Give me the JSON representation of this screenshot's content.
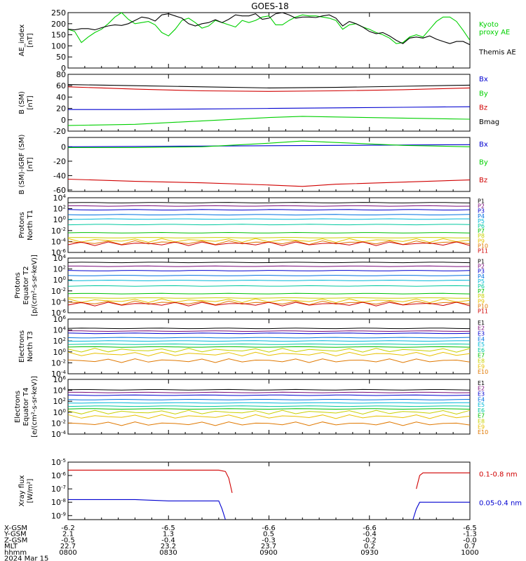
{
  "title": "GOES-18",
  "colors": {
    "black": "#000000",
    "green": "#00d000",
    "blue": "#0000d0",
    "red": "#d00000",
    "P": [
      "#000000",
      "#7a0a7a",
      "#0000d0",
      "#0070e0",
      "#00b8d8",
      "#00c8a0",
      "#00c000",
      "#c8d000",
      "#e8c000",
      "#e07800",
      "#d00000"
    ],
    "E": [
      "#000000",
      "#7a0a7a",
      "#0000d0",
      "#0070e0",
      "#00b8d8",
      "#00c8a0",
      "#00c000",
      "#c8d000",
      "#e8c000",
      "#e07800",
      "#d00000"
    ]
  },
  "chart_data": [
    {
      "id": "ae",
      "type": "line",
      "ylabel": "AE_index\n[nT]",
      "yticks": [
        "250",
        "200",
        "150",
        "100",
        "50",
        "0"
      ],
      "ylim": [
        0,
        250
      ],
      "legend": [
        {
          "text": "Kyoto\nproxy AE",
          "color": "#00d000"
        },
        {
          "text": "Themis AE",
          "color": "#000000"
        }
      ],
      "series": [
        {
          "name": "Kyoto proxy AE",
          "color": "#00d000",
          "x": [
            0,
            2,
            4,
            6,
            8,
            10,
            12,
            14,
            16,
            18,
            20,
            22,
            24,
            26,
            28,
            30,
            32,
            34,
            36,
            38,
            40,
            42,
            44,
            46,
            48,
            50,
            52,
            54,
            56,
            58,
            60,
            62,
            64,
            66,
            68,
            70,
            72,
            74,
            76,
            78,
            80,
            82,
            84,
            86,
            88,
            90,
            92,
            94,
            96,
            98,
            100,
            102,
            104,
            106,
            108,
            110,
            112,
            114,
            116,
            118,
            120
          ],
          "y": [
            175,
            165,
            115,
            140,
            160,
            175,
            200,
            230,
            250,
            220,
            200,
            205,
            210,
            195,
            160,
            145,
            175,
            215,
            225,
            205,
            180,
            190,
            215,
            205,
            195,
            185,
            215,
            205,
            215,
            230,
            235,
            195,
            195,
            215,
            230,
            240,
            235,
            235,
            230,
            225,
            215,
            175,
            195,
            200,
            185,
            175,
            160,
            150,
            135,
            110,
            115,
            140,
            150,
            140,
            175,
            210,
            230,
            230,
            210,
            170,
            125
          ]
        },
        {
          "name": "Themis AE",
          "color": "#000000",
          "x": [
            0,
            2,
            4,
            6,
            8,
            10,
            12,
            14,
            16,
            18,
            20,
            22,
            24,
            26,
            28,
            30,
            32,
            34,
            36,
            38,
            40,
            42,
            44,
            46,
            48,
            50,
            52,
            54,
            56,
            58,
            60,
            62,
            64,
            66,
            68,
            70,
            72,
            74,
            76,
            78,
            80,
            82,
            84,
            86,
            88,
            90,
            92,
            94,
            96,
            98,
            100,
            102,
            104,
            106,
            108,
            110,
            112,
            114,
            116,
            118,
            120
          ],
          "y": [
            175,
            172,
            178,
            178,
            172,
            182,
            190,
            195,
            192,
            200,
            215,
            230,
            225,
            212,
            240,
            245,
            235,
            225,
            200,
            190,
            200,
            205,
            218,
            205,
            220,
            240,
            235,
            235,
            245,
            220,
            225,
            245,
            250,
            240,
            225,
            230,
            230,
            228,
            235,
            240,
            225,
            190,
            210,
            200,
            185,
            165,
            155,
            160,
            145,
            125,
            110,
            135,
            140,
            135,
            145,
            130,
            120,
            110,
            120,
            120,
            105
          ]
        }
      ]
    },
    {
      "id": "bsm",
      "type": "line",
      "ylabel": "B (SM)\n[nT]",
      "yticks": [
        "80",
        "60",
        "40",
        "20",
        "0",
        "-20"
      ],
      "ylim": [
        -20,
        80
      ],
      "legend": [
        {
          "text": "Bx",
          "color": "#0000d0"
        },
        {
          "text": "By",
          "color": "#00d000"
        },
        {
          "text": "Bz",
          "color": "#d00000"
        },
        {
          "text": "Bmag",
          "color": "#000000"
        }
      ],
      "series": [
        {
          "name": "Bmag",
          "color": "#000000",
          "x": [
            0,
            20,
            40,
            60,
            80,
            100,
            120
          ],
          "y": [
            62,
            60,
            58,
            56,
            57,
            59,
            61
          ]
        },
        {
          "name": "Bz",
          "color": "#d00000",
          "x": [
            0,
            20,
            40,
            60,
            80,
            100,
            120
          ],
          "y": [
            58,
            54,
            51,
            50,
            51,
            53,
            56
          ]
        },
        {
          "name": "Bx",
          "color": "#0000d0",
          "x": [
            0,
            20,
            40,
            60,
            80,
            100,
            120
          ],
          "y": [
            18,
            18,
            19,
            20,
            21,
            22,
            23
          ]
        },
        {
          "name": "By",
          "color": "#00d000",
          "x": [
            0,
            20,
            40,
            60,
            70,
            80,
            100,
            120
          ],
          "y": [
            -10,
            -8,
            -2,
            4,
            6,
            5,
            3,
            1
          ]
        }
      ]
    },
    {
      "id": "bigrf",
      "type": "line",
      "ylabel": "B (SM)-IGRF (SM)\n[nT]",
      "yticks": [
        "0",
        "-20",
        "-40",
        "-60"
      ],
      "ylim": [
        -62,
        13
      ],
      "legend": [
        {
          "text": "Bx",
          "color": "#0000d0"
        },
        {
          "text": "By",
          "color": "#00d000"
        },
        {
          "text": "Bz",
          "color": "#d00000"
        }
      ],
      "series": [
        {
          "name": "Bx",
          "color": "#0000d0",
          "x": [
            0,
            40,
            80,
            120
          ],
          "y": [
            0,
            1,
            2,
            3
          ]
        },
        {
          "name": "By",
          "color": "#00d000",
          "x": [
            0,
            20,
            40,
            60,
            70,
            80,
            100,
            120
          ],
          "y": [
            -1,
            -1,
            0,
            5,
            8,
            6,
            2,
            0
          ]
        },
        {
          "name": "Bz",
          "color": "#d00000",
          "x": [
            0,
            20,
            40,
            60,
            70,
            80,
            100,
            120
          ],
          "y": [
            -45,
            -48,
            -50,
            -53,
            -55,
            -52,
            -49,
            -46
          ]
        }
      ]
    },
    {
      "id": "protons_north",
      "type": "line",
      "log": true,
      "ylabel": "Protons\nNorth T1",
      "yticks": [
        "10^4",
        "10^2",
        "10^0",
        "10^-2",
        "10^-4",
        "10^-6"
      ],
      "ylim": [
        -6,
        4
      ],
      "legend": [
        "P1",
        "P2",
        "P3",
        "P4",
        "P5",
        "P6",
        "P7",
        "P8",
        "P9",
        "P10",
        "P11"
      ],
      "levels": [
        3.1,
        2.5,
        1.8,
        0.9,
        0.1,
        -0.9,
        -2.4,
        -3.3,
        -3.8,
        -4.2,
        -4.4
      ]
    },
    {
      "id": "protons_equator",
      "type": "line",
      "log": true,
      "ylabel": "Protons\nEquator T2\n[p/(cm²-s-sr-keV)]",
      "yticks": [
        "10^4",
        "10^2",
        "10^0",
        "10^-2",
        "10^-4",
        "10^-6"
      ],
      "ylim": [
        -6,
        4
      ],
      "legend": [
        "P1",
        "P2",
        "P3",
        "P4",
        "P5",
        "P6",
        "P7",
        "P8",
        "P9",
        "P10",
        "P11"
      ],
      "levels": [
        3.2,
        2.5,
        1.7,
        0.8,
        -0.1,
        -1.1,
        -2.5,
        -3.3,
        -3.8,
        -4.2,
        -4.4
      ]
    },
    {
      "id": "electrons_north",
      "type": "line",
      "log": true,
      "ylabel": "Electrons\nNorth T3",
      "yticks": [
        "10^6",
        "10^4",
        "10^2",
        "10^0",
        "10^-2",
        "10^-4"
      ],
      "ylim": [
        -4,
        6
      ],
      "legend": [
        "E1",
        "E2",
        "E3",
        "E4",
        "E5",
        "E6",
        "E7",
        "E8",
        "E9",
        "E10"
      ],
      "levels": [
        4.3,
        3.8,
        3.4,
        2.6,
        2.0,
        1.4,
        0.9,
        0.3,
        -0.4,
        -1.6
      ]
    },
    {
      "id": "electrons_equator",
      "type": "line",
      "log": true,
      "ylabel": "Electrons\nEquator T4\n[e/(cm²-s-sr-keV)]",
      "yticks": [
        "10^6",
        "10^4",
        "10^2",
        "10^0",
        "10^-2",
        "10^-4"
      ],
      "ylim": [
        -4,
        6
      ],
      "legend": [
        "E1",
        "E2",
        "E3",
        "E4",
        "E5",
        "E6",
        "E7",
        "E8",
        "E9",
        "E10"
      ],
      "levels": [
        4.1,
        3.6,
        3.1,
        2.3,
        1.7,
        1.1,
        0.6,
        0.0,
        -0.8,
        -2.1
      ]
    },
    {
      "id": "xray",
      "type": "line",
      "log": true,
      "ylabel": "Xray flux\n[W/m²]",
      "yticks": [
        "10^-5",
        "10^-6",
        "10^-7",
        "10^-8",
        "10^-9"
      ],
      "ylim": [
        -9.3,
        -5
      ],
      "legend": [
        {
          "text": "0.1-0.8 nm",
          "color": "#d00000"
        },
        {
          "text": "0.05-0.4 nm",
          "color": "#0000d0"
        }
      ],
      "series": [
        {
          "name": "0.1-0.8 nm",
          "color": "#d00000",
          "segments": [
            {
              "x": [
                0,
                10,
                20,
                30,
                40,
                45,
                47,
                48,
                49
              ],
              "y": [
                -5.6,
                -5.6,
                -5.6,
                -5.6,
                -5.6,
                -5.6,
                -5.7,
                -6.2,
                -7.3
              ]
            },
            {
              "x": [
                104,
                105,
                106,
                110,
                115,
                120
              ],
              "y": [
                -7.0,
                -6.0,
                -5.8,
                -5.8,
                -5.8,
                -5.8
              ]
            }
          ]
        },
        {
          "name": "0.05-0.4 nm",
          "color": "#0000d0",
          "segments": [
            {
              "x": [
                0,
                10,
                20,
                30,
                40,
                45,
                46,
                47
              ],
              "y": [
                -7.8,
                -7.8,
                -7.8,
                -7.9,
                -7.9,
                -7.9,
                -8.5,
                -9.3
              ]
            },
            {
              "x": [
                103,
                104,
                105,
                110,
                115,
                120
              ],
              "y": [
                -9.3,
                -8.5,
                -8.0,
                -8.0,
                -8.0,
                -8.0
              ]
            }
          ]
        }
      ]
    }
  ],
  "axis_labels": {
    "rows": [
      {
        "label": "X-GSM",
        "values": [
          "-6.2",
          "-6.5",
          "-6.6",
          "-6.6",
          "-6.5"
        ]
      },
      {
        "label": "Y-GSM",
        "values": [
          "2.1",
          "1.3",
          "0.5",
          "-0.4",
          "-1.3"
        ]
      },
      {
        "label": "Z-GSM",
        "values": [
          "-0.5",
          "-0.4",
          "-0.3",
          "-0.2",
          "-0.0"
        ]
      },
      {
        "label": "MLT",
        "values": [
          "22.7",
          "23.2",
          "23.7",
          "0.2",
          "0.7"
        ]
      },
      {
        "label": "hhmm",
        "values": [
          "0800",
          "0830",
          "0900",
          "0930",
          "1000"
        ]
      }
    ],
    "date": "2024 Mar 15"
  }
}
